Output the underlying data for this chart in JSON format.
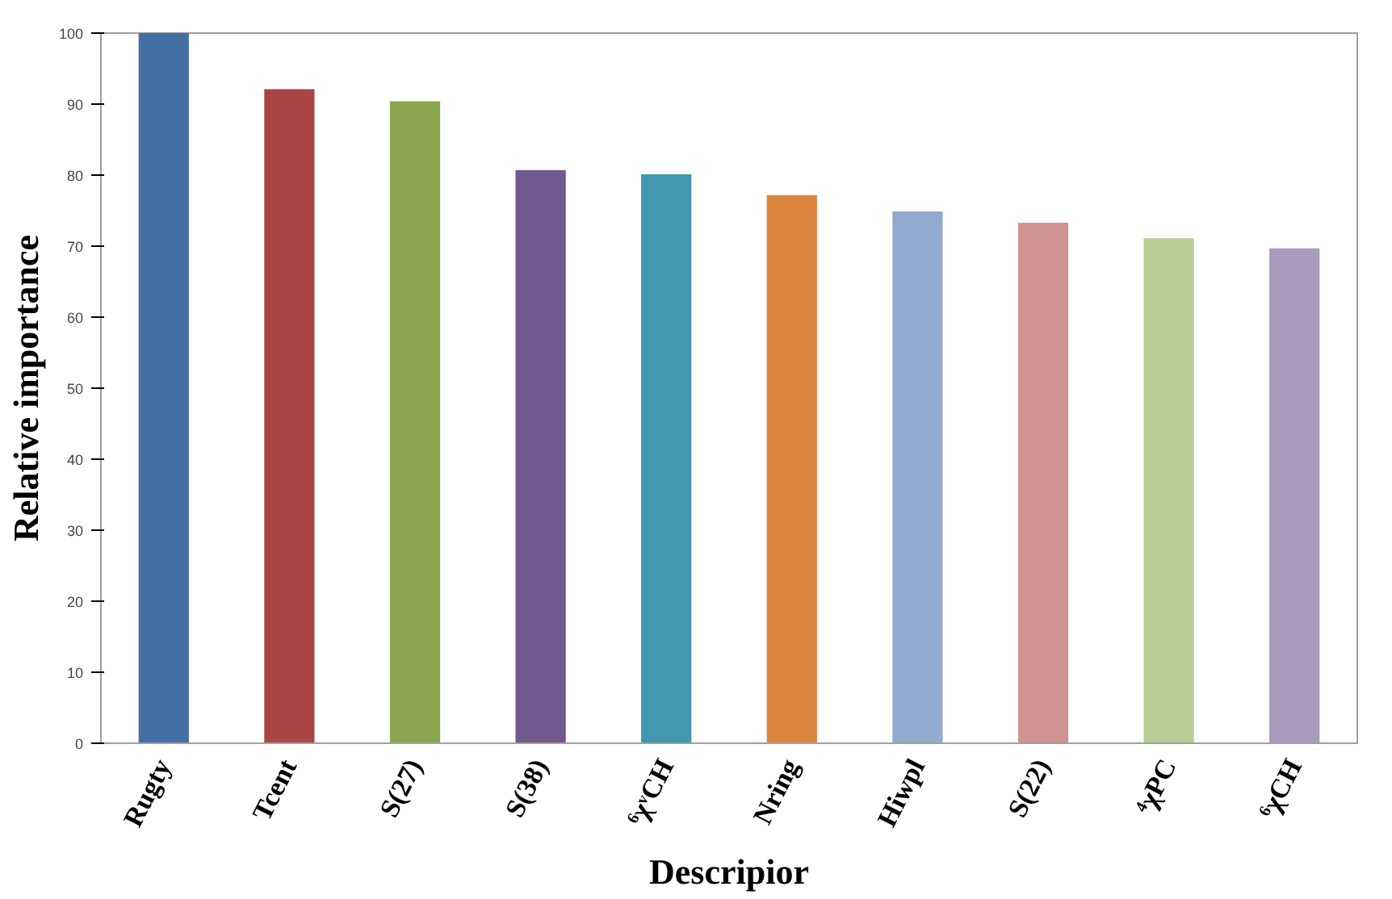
{
  "chart_data": {
    "type": "bar",
    "xlabel": "Descripior",
    "ylabel": "Relative importance",
    "categories": [
      "Rugty",
      "Tcent",
      "S(27)",
      "S(38)",
      "⁶χᵛCH",
      "Nring",
      "Hiwpl",
      "S(22)",
      "⁴χPC",
      "⁶χCH"
    ],
    "values": [
      100,
      92.1,
      90.4,
      80.7,
      80.1,
      77.2,
      74.9,
      73.3,
      71.1,
      69.7
    ],
    "colors": [
      "#4470a5",
      "#a94644",
      "#89a54e",
      "#71588f",
      "#4198af",
      "#db843d",
      "#93a9cf",
      "#d19392",
      "#b9cd96",
      "#a99bbd"
    ],
    "ylim": [
      0,
      100
    ],
    "yticks": [
      0,
      10,
      20,
      30,
      40,
      50,
      60,
      70,
      80,
      90,
      100
    ],
    "grid": false
  }
}
